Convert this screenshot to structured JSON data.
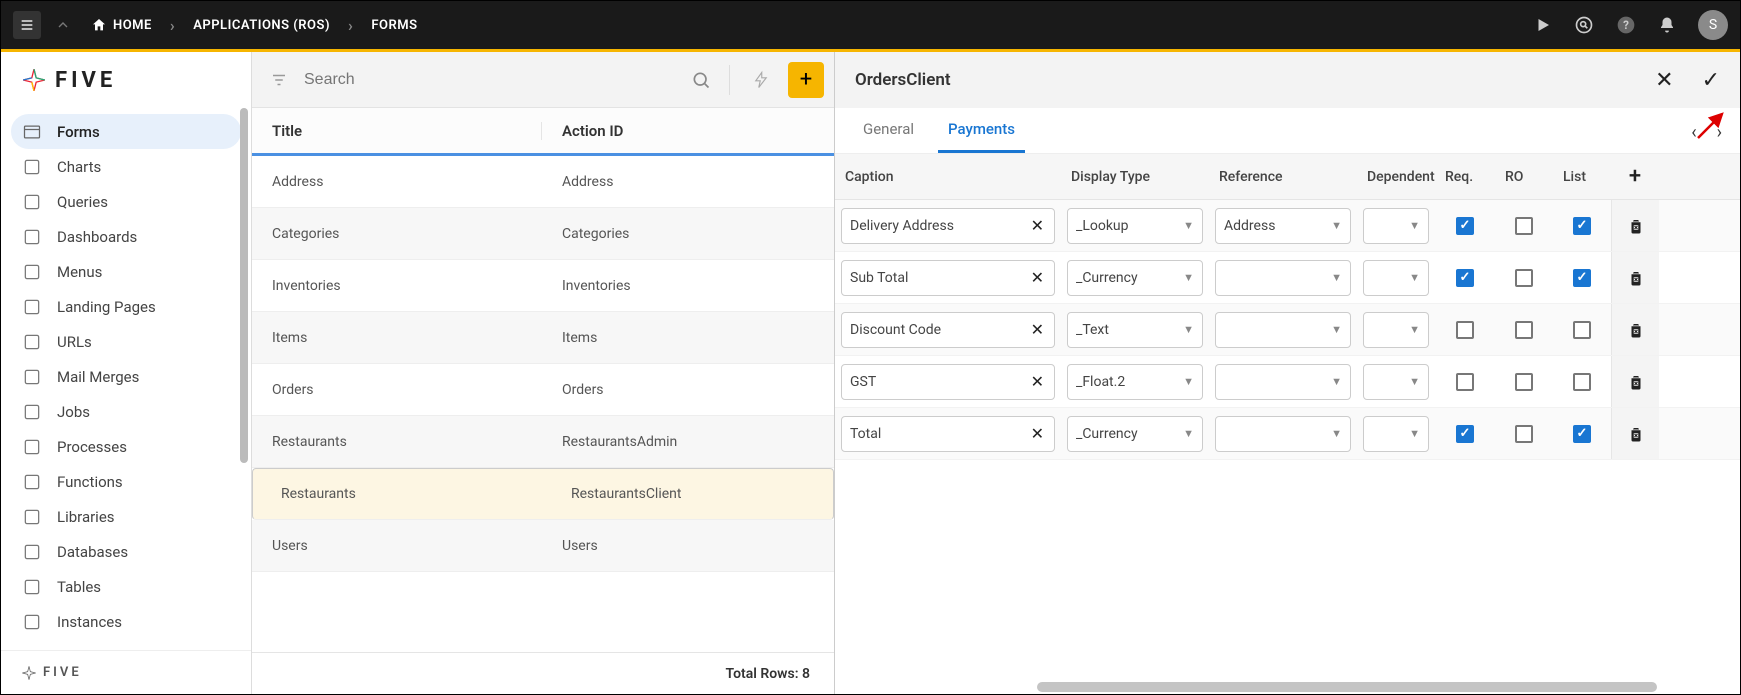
{
  "breadcrumb": {
    "home": "HOME",
    "mid": "APPLICATIONS (ROS)",
    "last": "FORMS"
  },
  "avatar_initial": "S",
  "logo_text": "FIVE",
  "footer_logo_text": "FIVE",
  "sidebar": {
    "items": [
      {
        "label": "Forms",
        "active": true
      },
      {
        "label": "Charts"
      },
      {
        "label": "Queries"
      },
      {
        "label": "Dashboards"
      },
      {
        "label": "Menus"
      },
      {
        "label": "Landing Pages"
      },
      {
        "label": "URLs"
      },
      {
        "label": "Mail Merges"
      },
      {
        "label": "Jobs"
      },
      {
        "label": "Processes"
      },
      {
        "label": "Functions"
      },
      {
        "label": "Libraries"
      },
      {
        "label": "Databases"
      },
      {
        "label": "Tables"
      },
      {
        "label": "Instances"
      }
    ]
  },
  "search": {
    "placeholder": "Search"
  },
  "list": {
    "columns": {
      "title": "Title",
      "actionId": "Action ID"
    },
    "rows": [
      {
        "title": "Address",
        "actionId": "Address"
      },
      {
        "title": "Categories",
        "actionId": "Categories"
      },
      {
        "title": "Inventories",
        "actionId": "Inventories"
      },
      {
        "title": "Items",
        "actionId": "Items"
      },
      {
        "title": "Orders",
        "actionId": "Orders"
      },
      {
        "title": "Restaurants",
        "actionId": "RestaurantsAdmin"
      },
      {
        "title": "Restaurants",
        "actionId": "RestaurantsClient",
        "selected": true
      },
      {
        "title": "Users",
        "actionId": "Users"
      }
    ],
    "footer": "Total Rows: 8"
  },
  "detail": {
    "title": "OrdersClient",
    "tabs": [
      {
        "label": "General",
        "active": false
      },
      {
        "label": "Payments",
        "active": true
      }
    ],
    "grid": {
      "headers": {
        "caption": "Caption",
        "displayType": "Display Type",
        "reference": "Reference",
        "dependent": "Dependent",
        "req": "Req.",
        "ro": "RO",
        "list": "List"
      },
      "rows": [
        {
          "caption": "Delivery Address",
          "displayType": "_Lookup",
          "reference": "Address",
          "dependent": "",
          "req": true,
          "ro": false,
          "list": true
        },
        {
          "caption": "Sub Total",
          "displayType": "_Currency",
          "reference": "",
          "dependent": "",
          "req": true,
          "ro": false,
          "list": true
        },
        {
          "caption": "Discount Code",
          "displayType": "_Text",
          "reference": "",
          "dependent": "",
          "req": false,
          "ro": false,
          "list": false
        },
        {
          "caption": "GST",
          "displayType": "_Float.2",
          "reference": "",
          "dependent": "",
          "req": false,
          "ro": false,
          "list": false
        },
        {
          "caption": "Total",
          "displayType": "_Currency",
          "reference": "",
          "dependent": "",
          "req": true,
          "ro": false,
          "list": true
        }
      ]
    }
  }
}
